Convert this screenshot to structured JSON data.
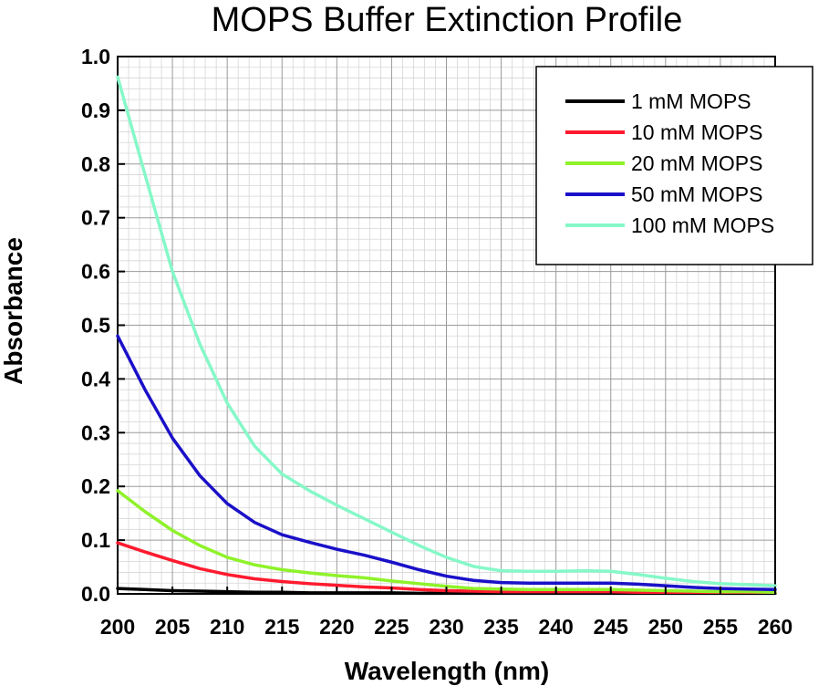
{
  "chart_data": {
    "type": "line",
    "title": "MOPS Buffer Extinction Profile",
    "xlabel": "Wavelength (nm)",
    "ylabel": "Absorbance",
    "xlim": [
      200,
      260
    ],
    "ylim": [
      0,
      1.0
    ],
    "x_ticks": [
      "200",
      "205",
      "210",
      "215",
      "220",
      "225",
      "230",
      "235",
      "240",
      "245",
      "250",
      "255",
      "260"
    ],
    "y_ticks": [
      "0.0",
      "0.1",
      "0.2",
      "0.3",
      "0.4",
      "0.5",
      "0.6",
      "0.7",
      "0.8",
      "0.9",
      "1.0"
    ],
    "grid": true,
    "legend_position": "top-right",
    "x": [
      200,
      202.5,
      205,
      207.5,
      210,
      212.5,
      215,
      217.5,
      220,
      222.5,
      225,
      227.5,
      230,
      232.5,
      235,
      237.5,
      240,
      242.5,
      245,
      247.5,
      250,
      252.5,
      255,
      257.5,
      260
    ],
    "series": [
      {
        "name": "1 mM MOPS",
        "color": "#000000",
        "values": [
          0.01,
          0.008,
          0.006,
          0.005,
          0.004,
          0.003,
          0.003,
          0.002,
          0.002,
          0.002,
          0.002,
          0.001,
          0.001,
          0.001,
          0.001,
          0.001,
          0.001,
          0.001,
          0.001,
          0.001,
          0.001,
          0.001,
          0.001,
          0.001,
          0.001
        ]
      },
      {
        "name": "10 mM MOPS",
        "color": "#ff1a2e",
        "values": [
          0.095,
          0.078,
          0.062,
          0.047,
          0.036,
          0.028,
          0.023,
          0.019,
          0.016,
          0.013,
          0.011,
          0.008,
          0.006,
          0.005,
          0.004,
          0.004,
          0.004,
          0.004,
          0.004,
          0.003,
          0.003,
          0.003,
          0.003,
          0.003,
          0.003
        ]
      },
      {
        "name": "20 mM MOPS",
        "color": "#8ff22a",
        "values": [
          0.192,
          0.153,
          0.118,
          0.09,
          0.068,
          0.054,
          0.045,
          0.039,
          0.034,
          0.03,
          0.024,
          0.019,
          0.014,
          0.01,
          0.009,
          0.008,
          0.008,
          0.008,
          0.008,
          0.007,
          0.006,
          0.005,
          0.004,
          0.004,
          0.003
        ]
      },
      {
        "name": "50 mM MOPS",
        "color": "#1a10c8",
        "values": [
          0.48,
          0.38,
          0.29,
          0.22,
          0.168,
          0.133,
          0.11,
          0.096,
          0.083,
          0.072,
          0.059,
          0.045,
          0.033,
          0.025,
          0.021,
          0.02,
          0.02,
          0.02,
          0.02,
          0.018,
          0.015,
          0.012,
          0.01,
          0.009,
          0.008
        ]
      },
      {
        "name": "100 mM MOPS",
        "color": "#86f8c8",
        "values": [
          0.962,
          0.78,
          0.6,
          0.465,
          0.355,
          0.275,
          0.223,
          0.192,
          0.165,
          0.14,
          0.115,
          0.09,
          0.068,
          0.051,
          0.043,
          0.042,
          0.042,
          0.043,
          0.042,
          0.036,
          0.029,
          0.023,
          0.019,
          0.017,
          0.015
        ]
      }
    ]
  }
}
